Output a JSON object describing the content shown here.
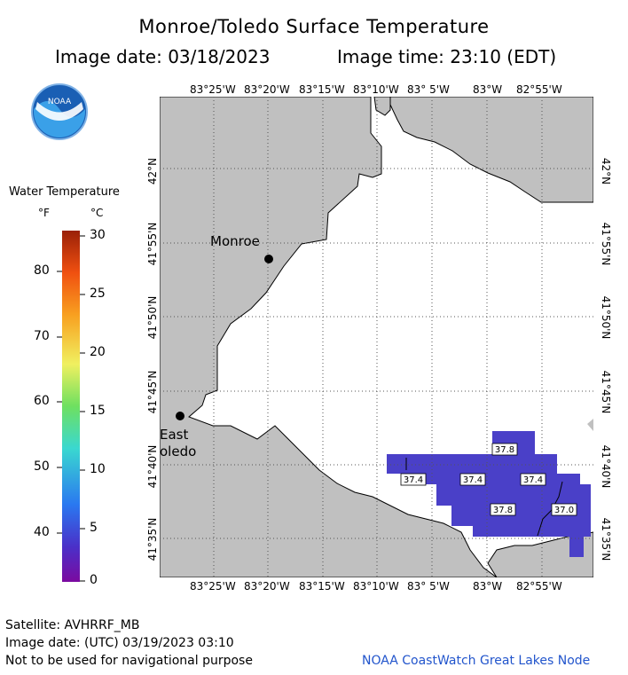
{
  "header": {
    "title": "Monroe/Toledo Surface Temperature",
    "image_date_line": "Image date: 03/18/2023",
    "image_time_line": "Image time: 23:10 (EDT)"
  },
  "map": {
    "lon_labels": [
      "83°25'W",
      "83°20'W",
      "83°15'W",
      "83°10'W",
      "83° 5'W",
      "83°W",
      "82°55'W"
    ],
    "lat_labels": [
      "42°N",
      "41°55'N",
      "41°50'N",
      "41°45'N",
      "41°40'N",
      "41°35'N"
    ],
    "cities": [
      {
        "name": "Monroe"
      },
      {
        "name": "East\noledo"
      }
    ],
    "temperature_labels": [
      "37.8",
      "37.4",
      "37.4",
      "37.4",
      "37.8",
      "37.0"
    ],
    "colors": {
      "land": "#c0c0c0",
      "water": "#ffffff",
      "data": "#4a40c8",
      "grid": "#555555"
    }
  },
  "legend": {
    "title": "Water Temperature",
    "unit_f": "°F",
    "unit_c": "°C",
    "f_ticks": [
      "80",
      "70",
      "60",
      "50",
      "40"
    ],
    "c_ticks": [
      "30",
      "25",
      "20",
      "15",
      "10",
      "5",
      "0"
    ]
  },
  "logo": {
    "text": "NOAA"
  },
  "footer": {
    "satellite": "Satellite: AVHRRF_MB",
    "utc_date": "Image date: (UTC) 03/19/2023  03:10",
    "disclaimer": "Not to be used for navigational purpose",
    "credit": "NOAA CoastWatch Great Lakes Node"
  }
}
